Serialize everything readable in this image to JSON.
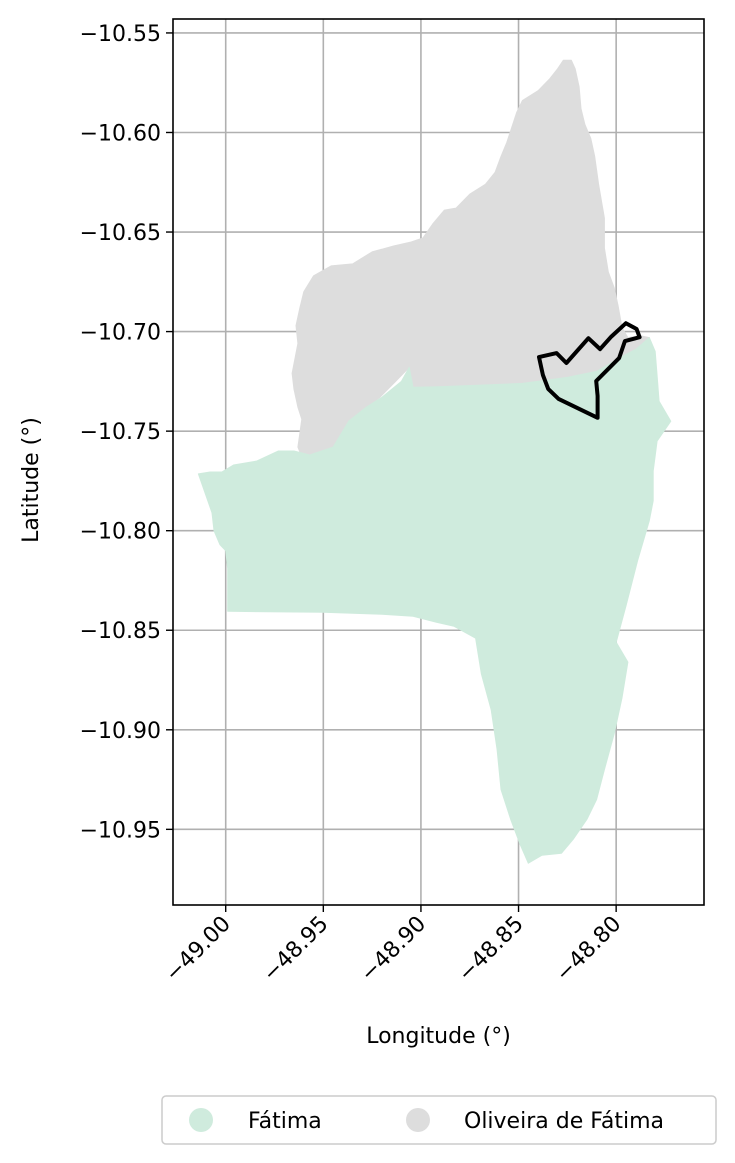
{
  "axes": {
    "xlabel": "Longitude (°)",
    "ylabel": "Latitude (°)",
    "xlim": [
      -49.027,
      -48.755
    ],
    "ylim": [
      -10.988,
      -10.543
    ],
    "x_ticks": [
      -49.0,
      -48.95,
      -48.9,
      -48.85,
      -48.8
    ],
    "x_tick_labels": [
      "−49.00",
      "−48.95",
      "−48.90",
      "−48.85",
      "−48.80"
    ],
    "y_ticks": [
      -10.55,
      -10.6,
      -10.65,
      -10.7,
      -10.75,
      -10.8,
      -10.85,
      -10.9,
      -10.95
    ],
    "y_tick_labels": [
      "−10.55",
      "−10.60",
      "−10.65",
      "−10.70",
      "−10.75",
      "−10.80",
      "−10.85",
      "−10.90",
      "−10.95"
    ],
    "grid": true
  },
  "legend": {
    "placement": "bottom-center",
    "columns": 2,
    "items": [
      {
        "label": "Fátima",
        "color": "#cfebdd"
      },
      {
        "label": "Oliveira de Fátima",
        "color": "#dddddd"
      }
    ]
  },
  "regions": [
    {
      "name": "Oliveira de Fátima",
      "color": "#dddddd",
      "polygon": [
        [
          -48.827,
          -10.5637
        ],
        [
          -48.823,
          -10.5637
        ],
        [
          -48.821,
          -10.568
        ],
        [
          -48.819,
          -10.577
        ],
        [
          -48.818,
          -10.588
        ],
        [
          -48.816,
          -10.596
        ],
        [
          -48.813,
          -10.603
        ],
        [
          -48.811,
          -10.612
        ],
        [
          -48.809,
          -10.626
        ],
        [
          -48.806,
          -10.643
        ],
        [
          -48.806,
          -10.658
        ],
        [
          -48.804,
          -10.67
        ],
        [
          -48.801,
          -10.678
        ],
        [
          -48.799,
          -10.687
        ],
        [
          -48.797,
          -10.698
        ],
        [
          -48.794,
          -10.703
        ],
        [
          -48.788,
          -10.702
        ],
        [
          -48.783,
          -10.703
        ],
        [
          -48.79,
          -10.709
        ],
        [
          -48.796,
          -10.712
        ],
        [
          -48.81,
          -10.72
        ],
        [
          -48.825,
          -10.723
        ],
        [
          -48.848,
          -10.726
        ],
        [
          -48.871,
          -10.727
        ],
        [
          -48.893,
          -10.7278
        ],
        [
          -48.904,
          -10.728
        ],
        [
          -48.906,
          -10.718
        ],
        [
          -48.913,
          -10.725
        ],
        [
          -48.921,
          -10.733
        ],
        [
          -48.931,
          -10.74
        ],
        [
          -48.939,
          -10.751
        ],
        [
          -48.943,
          -10.76
        ],
        [
          -48.948,
          -10.761
        ],
        [
          -48.961,
          -10.763
        ],
        [
          -48.963,
          -10.758
        ],
        [
          -48.961,
          -10.744
        ],
        [
          -48.963,
          -10.738
        ],
        [
          -48.965,
          -10.729
        ],
        [
          -48.966,
          -10.721
        ],
        [
          -48.963,
          -10.706
        ],
        [
          -48.964,
          -10.697
        ],
        [
          -48.962,
          -10.688
        ],
        [
          -48.96,
          -10.68
        ],
        [
          -48.955,
          -10.672
        ],
        [
          -48.946,
          -10.667
        ],
        [
          -48.935,
          -10.666
        ],
        [
          -48.925,
          -10.66
        ],
        [
          -48.914,
          -10.657
        ],
        [
          -48.905,
          -10.655
        ],
        [
          -48.899,
          -10.653
        ],
        [
          -48.894,
          -10.646
        ],
        [
          -48.888,
          -10.639
        ],
        [
          -48.882,
          -10.638
        ],
        [
          -48.875,
          -10.631
        ],
        [
          -48.867,
          -10.626
        ],
        [
          -48.862,
          -10.62
        ],
        [
          -48.859,
          -10.612
        ],
        [
          -48.856,
          -10.605
        ],
        [
          -48.853,
          -10.596
        ],
        [
          -48.851,
          -10.59
        ],
        [
          -48.848,
          -10.584
        ],
        [
          -48.84,
          -10.579
        ],
        [
          -48.834,
          -10.573
        ],
        [
          -48.83,
          -10.568
        ]
      ]
    },
    {
      "name": "Fátima",
      "color": "#cfebdd",
      "polygon": [
        [
          -49.014,
          -10.7715
        ],
        [
          -49.008,
          -10.7705
        ],
        [
          -49.002,
          -10.7705
        ],
        [
          -48.996,
          -10.767
        ],
        [
          -48.984,
          -10.765
        ],
        [
          -48.973,
          -10.76
        ],
        [
          -48.965,
          -10.76
        ],
        [
          -48.957,
          -10.762
        ],
        [
          -48.945,
          -10.758
        ],
        [
          -48.937,
          -10.745
        ],
        [
          -48.928,
          -10.738
        ],
        [
          -48.92,
          -10.733
        ],
        [
          -48.91,
          -10.725
        ],
        [
          -48.906,
          -10.718
        ],
        [
          -48.904,
          -10.728
        ],
        [
          -48.893,
          -10.7278
        ],
        [
          -48.871,
          -10.727
        ],
        [
          -48.848,
          -10.726
        ],
        [
          -48.825,
          -10.723
        ],
        [
          -48.81,
          -10.72
        ],
        [
          -48.796,
          -10.712
        ],
        [
          -48.79,
          -10.709
        ],
        [
          -48.783,
          -10.703
        ],
        [
          -48.78,
          -10.71
        ],
        [
          -48.779,
          -10.722
        ],
        [
          -48.778,
          -10.735
        ],
        [
          -48.772,
          -10.745
        ],
        [
          -48.779,
          -10.755
        ],
        [
          -48.781,
          -10.77
        ],
        [
          -48.781,
          -10.785
        ],
        [
          -48.783,
          -10.795
        ],
        [
          -48.789,
          -10.815
        ],
        [
          -48.795,
          -10.838
        ],
        [
          -48.8,
          -10.856
        ],
        [
          -48.794,
          -10.866
        ],
        [
          -48.797,
          -10.884
        ],
        [
          -48.801,
          -10.902
        ],
        [
          -48.806,
          -10.92
        ],
        [
          -48.81,
          -10.935
        ],
        [
          -48.815,
          -10.945
        ],
        [
          -48.822,
          -10.955
        ],
        [
          -48.828,
          -10.962
        ],
        [
          -48.838,
          -10.963
        ],
        [
          -48.845,
          -10.967
        ],
        [
          -48.849,
          -10.958
        ],
        [
          -48.854,
          -10.945
        ],
        [
          -48.859,
          -10.93
        ],
        [
          -48.861,
          -10.91
        ],
        [
          -48.864,
          -10.89
        ],
        [
          -48.869,
          -10.872
        ],
        [
          -48.872,
          -10.854
        ],
        [
          -48.883,
          -10.848
        ],
        [
          -48.892,
          -10.846
        ],
        [
          -48.904,
          -10.843
        ],
        [
          -48.92,
          -10.842
        ],
        [
          -48.95,
          -10.841
        ],
        [
          -48.999,
          -10.8405
        ],
        [
          -48.999,
          -10.819
        ],
        [
          -49.0,
          -10.81
        ],
        [
          -49.003,
          -10.807
        ],
        [
          -49.006,
          -10.8
        ],
        [
          -49.007,
          -10.791
        ]
      ]
    }
  ],
  "boundary": {
    "color": "#000000",
    "polyline": [
      [
        -48.8395,
        -10.7128
      ],
      [
        -48.8305,
        -10.7108
      ],
      [
        -48.8255,
        -10.7158
      ],
      [
        -48.8142,
        -10.7033
      ],
      [
        -48.8082,
        -10.7088
      ],
      [
        -48.8025,
        -10.7025
      ],
      [
        -48.795,
        -10.6958
      ],
      [
        -48.7895,
        -10.6987
      ],
      [
        -48.788,
        -10.7028
      ],
      [
        -48.7955,
        -10.7048
      ],
      [
        -48.7985,
        -10.7133
      ],
      [
        -48.8102,
        -10.7248
      ],
      [
        -48.8095,
        -10.7323
      ],
      [
        -48.8095,
        -10.7433
      ],
      [
        -48.8295,
        -10.7338
      ],
      [
        -48.8348,
        -10.7288
      ],
      [
        -48.8375,
        -10.7218
      ],
      [
        -48.8395,
        -10.7128
      ]
    ]
  }
}
